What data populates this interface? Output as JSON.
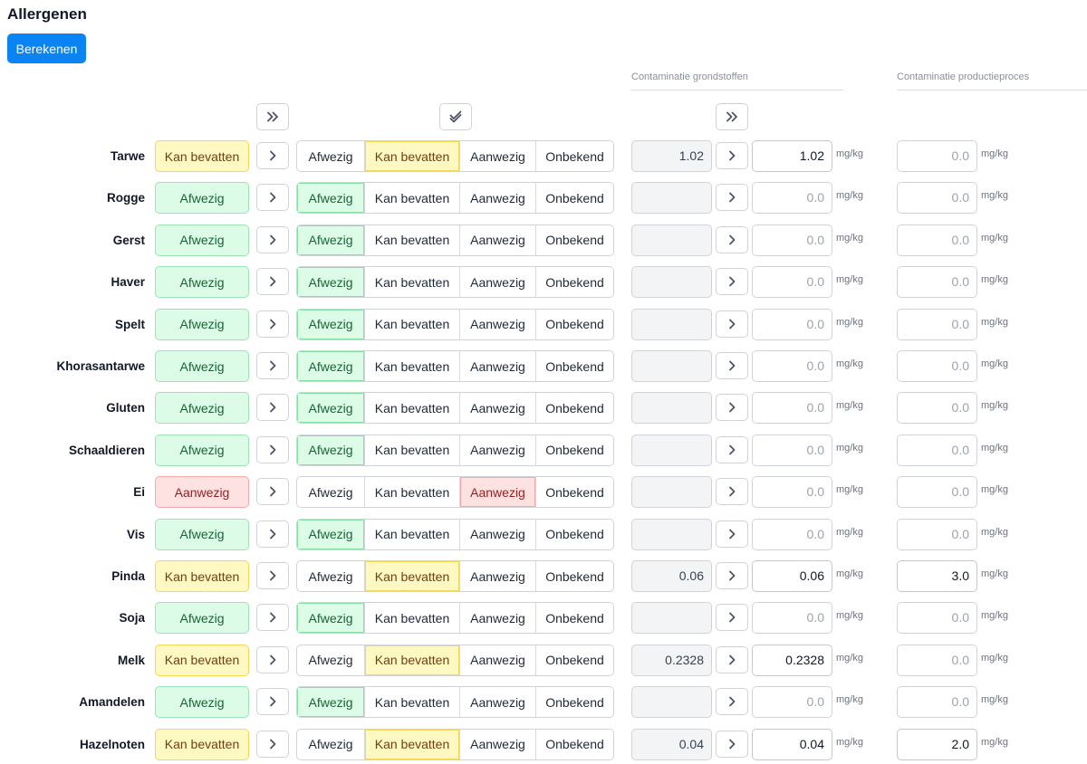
{
  "page": {
    "title": "Allergenen",
    "calculate_label": "Berekenen"
  },
  "sections": {
    "raw_materials": "Contaminatie grondstoffen",
    "production": "Contaminatie productieproces"
  },
  "options": [
    "Afwezig",
    "Kan bevatten",
    "Aanwezig",
    "Onbekend"
  ],
  "unit": "mg/kg",
  "icons": {
    "apply_all": "double-chevron-right-icon",
    "check_all": "double-check-icon",
    "apply_row": "chevron-right-icon"
  },
  "colors": {
    "primary": "#0b84f3",
    "afwezig_bg": "#dcfce7",
    "afwezig_text": "#166534",
    "kan_bevatten_bg": "#fef9c3",
    "kan_bevatten_text": "#713f12",
    "aanwezig_bg": "#fee2e2",
    "aanwezig_text": "#991b1b"
  },
  "allergens": [
    {
      "name": "Tarwe",
      "status": "Kan bevatten",
      "selected": "Kan bevatten",
      "raw_value": "1.02",
      "raw_input": "1.02",
      "raw_input_placeholder": "0.0",
      "production_input": "",
      "production_placeholder": "0.0"
    },
    {
      "name": "Rogge",
      "status": "Afwezig",
      "selected": "Afwezig",
      "raw_value": "",
      "raw_input": "",
      "raw_input_placeholder": "0.0",
      "production_input": "",
      "production_placeholder": "0.0"
    },
    {
      "name": "Gerst",
      "status": "Afwezig",
      "selected": "Afwezig",
      "raw_value": "",
      "raw_input": "",
      "raw_input_placeholder": "0.0",
      "production_input": "",
      "production_placeholder": "0.0"
    },
    {
      "name": "Haver",
      "status": "Afwezig",
      "selected": "Afwezig",
      "raw_value": "",
      "raw_input": "",
      "raw_input_placeholder": "0.0",
      "production_input": "",
      "production_placeholder": "0.0"
    },
    {
      "name": "Spelt",
      "status": "Afwezig",
      "selected": "Afwezig",
      "raw_value": "",
      "raw_input": "",
      "raw_input_placeholder": "0.0",
      "production_input": "",
      "production_placeholder": "0.0"
    },
    {
      "name": "Khorasantarwe",
      "status": "Afwezig",
      "selected": "Afwezig",
      "raw_value": "",
      "raw_input": "",
      "raw_input_placeholder": "0.0",
      "production_input": "",
      "production_placeholder": "0.0"
    },
    {
      "name": "Gluten",
      "status": "Afwezig",
      "selected": "Afwezig",
      "raw_value": "",
      "raw_input": "",
      "raw_input_placeholder": "0.0",
      "production_input": "",
      "production_placeholder": "0.0"
    },
    {
      "name": "Schaaldieren",
      "status": "Afwezig",
      "selected": "Afwezig",
      "raw_value": "",
      "raw_input": "",
      "raw_input_placeholder": "0.0",
      "production_input": "",
      "production_placeholder": "0.0"
    },
    {
      "name": "Ei",
      "status": "Aanwezig",
      "selected": "Aanwezig",
      "raw_value": "",
      "raw_input": "",
      "raw_input_placeholder": "0.0",
      "production_input": "",
      "production_placeholder": "0.0"
    },
    {
      "name": "Vis",
      "status": "Afwezig",
      "selected": "Afwezig",
      "raw_value": "",
      "raw_input": "",
      "raw_input_placeholder": "0.0",
      "production_input": "",
      "production_placeholder": "0.0"
    },
    {
      "name": "Pinda",
      "status": "Kan bevatten",
      "selected": "Kan bevatten",
      "raw_value": "0.06",
      "raw_input": "0.06",
      "raw_input_placeholder": "0.0",
      "production_input": "3.0",
      "production_placeholder": "0.0"
    },
    {
      "name": "Soja",
      "status": "Afwezig",
      "selected": "Afwezig",
      "raw_value": "",
      "raw_input": "",
      "raw_input_placeholder": "0.0",
      "production_input": "",
      "production_placeholder": "0.0"
    },
    {
      "name": "Melk",
      "status": "Kan bevatten",
      "selected": "Kan bevatten",
      "raw_value": "0.2328",
      "raw_input": "0.2328",
      "raw_input_placeholder": "0.0",
      "production_input": "",
      "production_placeholder": "0.0"
    },
    {
      "name": "Amandelen",
      "status": "Afwezig",
      "selected": "Afwezig",
      "raw_value": "",
      "raw_input": "",
      "raw_input_placeholder": "0.0",
      "production_input": "",
      "production_placeholder": "0.0"
    },
    {
      "name": "Hazelnoten",
      "status": "Kan bevatten",
      "selected": "Kan bevatten",
      "raw_value": "0.04",
      "raw_input": "0.04",
      "raw_input_placeholder": "0.0",
      "production_input": "2.0",
      "production_placeholder": "0.0"
    }
  ]
}
